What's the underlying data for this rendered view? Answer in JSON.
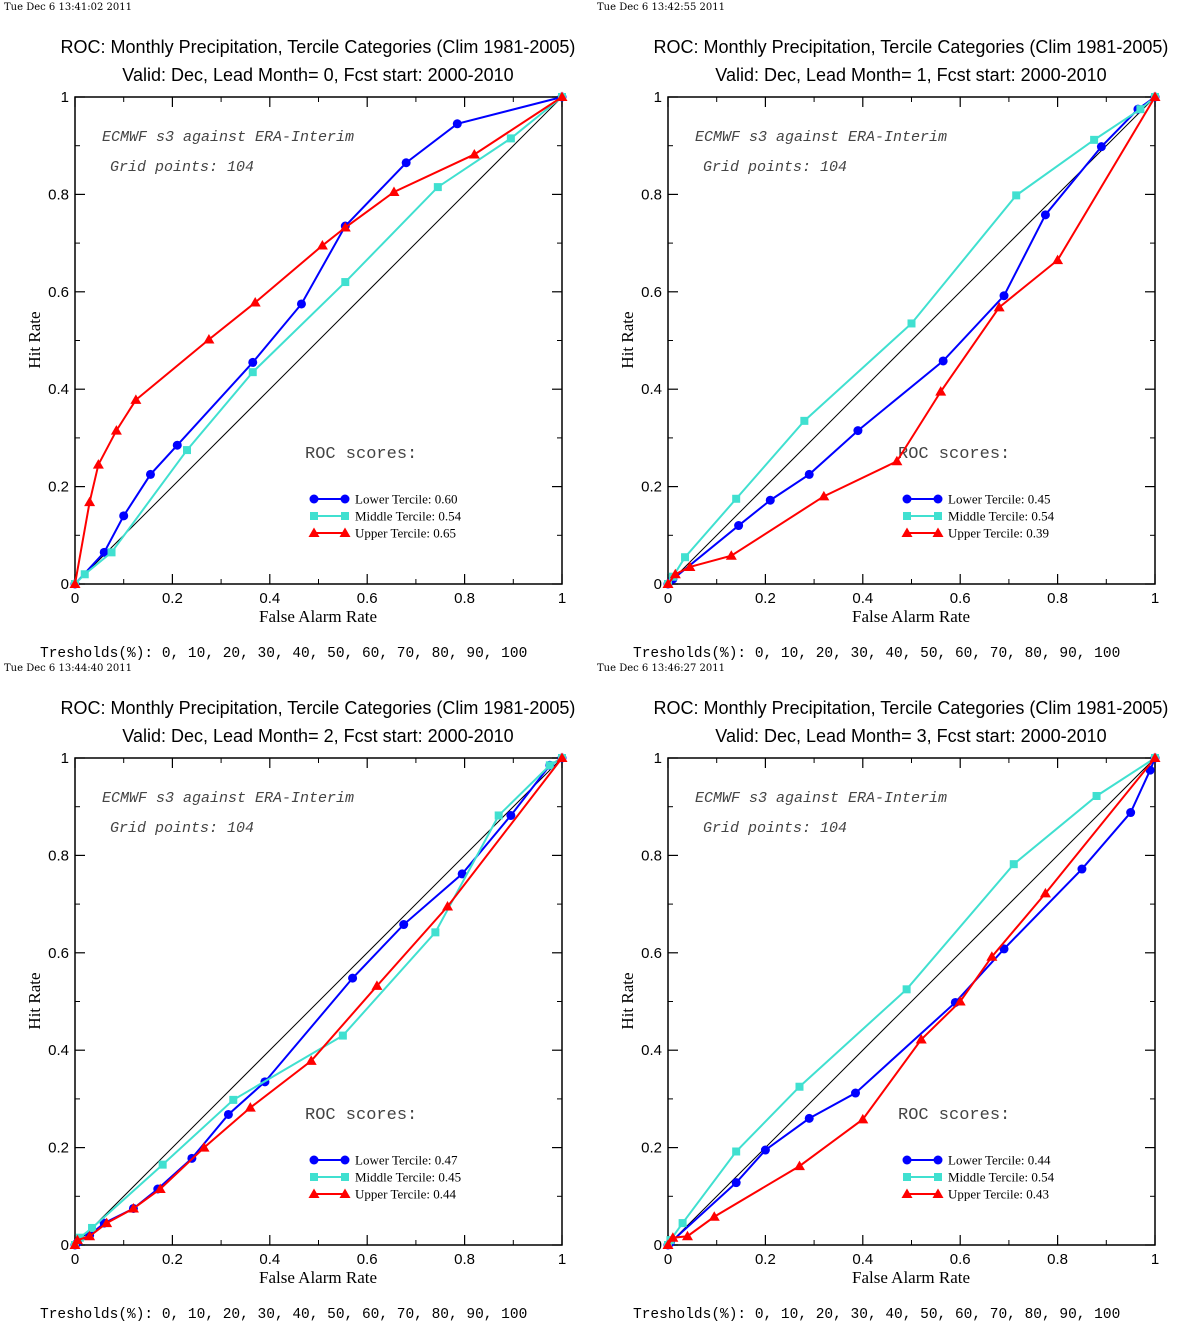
{
  "common": {
    "title": "ROC: Monthly Precipitation, Tercile Categories (Clim 1981-2005)",
    "xlabel": "False Alarm Rate",
    "ylabel": "Hit Rate",
    "note_line1": "ECMWF s3 against ERA-Interim",
    "note_line2": "Grid points:  104",
    "roc_heading": "ROC scores:",
    "thresholds": "Tresholds(%): 0, 10, 20, 30, 40, 50, 60, 70, 80, 90, 100",
    "tick_labels": [
      "0",
      "0.2",
      "0.4",
      "0.6",
      "0.8",
      "1"
    ],
    "colors": {
      "lower": "#0000ff",
      "middle": "#40e0d0",
      "upper": "#ff0000",
      "diagonal": "#000000"
    }
  },
  "panels": [
    {
      "stamp": "Tue Dec  6 13:41:02 2011",
      "subtitle": "Valid: Dec, Lead Month= 0, Fcst start: 2000-2010",
      "legend": [
        "Lower Tercile: 0.60",
        "Middle Tercile: 0.54",
        "Upper Tercile: 0.65"
      ]
    },
    {
      "stamp": "Tue Dec  6 13:42:55 2011",
      "subtitle": "Valid: Dec, Lead Month= 1, Fcst start: 2000-2010",
      "legend": [
        "Lower Tercile: 0.45",
        "Middle Tercile: 0.54",
        "Upper Tercile: 0.39"
      ]
    },
    {
      "stamp": "Tue Dec  6 13:44:40 2011",
      "subtitle": "Valid: Dec, Lead Month= 2, Fcst start: 2000-2010",
      "legend": [
        "Lower Tercile: 0.47",
        "Middle Tercile: 0.45",
        "Upper Tercile: 0.44"
      ]
    },
    {
      "stamp": "Tue Dec  6 13:46:27 2011",
      "subtitle": "Valid: Dec, Lead Month= 3, Fcst start: 2000-2010",
      "legend": [
        "Lower Tercile: 0.44",
        "Middle Tercile: 0.54",
        "Upper Tercile: 0.43"
      ]
    }
  ],
  "chart_data": [
    {
      "type": "line",
      "xlim": [
        0,
        1
      ],
      "ylim": [
        0,
        1
      ],
      "series": [
        {
          "name": "Lower Tercile",
          "x": [
            0,
            0.06,
            0.1,
            0.155,
            0.21,
            0.365,
            0.465,
            0.555,
            0.68,
            0.785,
            1
          ],
          "y": [
            0,
            0.065,
            0.14,
            0.225,
            0.285,
            0.455,
            0.575,
            0.735,
            0.865,
            0.945,
            1
          ]
        },
        {
          "name": "Middle Tercile",
          "x": [
            0,
            0.02,
            0.075,
            0.23,
            0.365,
            0.555,
            0.745,
            0.895,
            1
          ],
          "y": [
            0,
            0.02,
            0.065,
            0.275,
            0.435,
            0.62,
            0.815,
            0.915,
            1
          ]
        },
        {
          "name": "Upper Tercile",
          "x": [
            0,
            0.03,
            0.048,
            0.085,
            0.125,
            0.275,
            0.37,
            0.508,
            0.555,
            0.655,
            0.82,
            1
          ],
          "y": [
            0,
            0.168,
            0.245,
            0.315,
            0.378,
            0.502,
            0.578,
            0.695,
            0.732,
            0.805,
            0.882,
            1
          ]
        }
      ]
    },
    {
      "type": "line",
      "xlim": [
        0,
        1
      ],
      "ylim": [
        0,
        1
      ],
      "series": [
        {
          "name": "Lower Tercile",
          "x": [
            0,
            0.01,
            0.145,
            0.21,
            0.29,
            0.39,
            0.565,
            0.69,
            0.775,
            0.89,
            0.965,
            1
          ],
          "y": [
            0,
            0.01,
            0.12,
            0.172,
            0.225,
            0.315,
            0.458,
            0.592,
            0.758,
            0.898,
            0.975,
            1
          ]
        },
        {
          "name": "Middle Tercile",
          "x": [
            0,
            0.01,
            0.035,
            0.14,
            0.28,
            0.5,
            0.715,
            0.875,
            0.97,
            1
          ],
          "y": [
            0,
            0.015,
            0.055,
            0.175,
            0.335,
            0.535,
            0.798,
            0.912,
            0.975,
            1
          ]
        },
        {
          "name": "Upper Tercile",
          "x": [
            0,
            0.015,
            0.045,
            0.13,
            0.32,
            0.47,
            0.56,
            0.68,
            0.8,
            1
          ],
          "y": [
            0,
            0.02,
            0.035,
            0.058,
            0.18,
            0.252,
            0.395,
            0.568,
            0.665,
            1
          ]
        }
      ]
    },
    {
      "type": "line",
      "xlim": [
        0,
        1
      ],
      "ylim": [
        0,
        1
      ],
      "series": [
        {
          "name": "Lower Tercile",
          "x": [
            0,
            0.005,
            0.03,
            0.06,
            0.12,
            0.17,
            0.24,
            0.315,
            0.39,
            0.57,
            0.675,
            0.795,
            0.895,
            0.975,
            1
          ],
          "y": [
            0,
            0.005,
            0.02,
            0.045,
            0.075,
            0.115,
            0.178,
            0.268,
            0.335,
            0.548,
            0.658,
            0.762,
            0.882,
            0.985,
            1
          ]
        },
        {
          "name": "Middle Tercile",
          "x": [
            0,
            0.01,
            0.035,
            0.18,
            0.325,
            0.55,
            0.74,
            0.87,
            0.975,
            1
          ],
          "y": [
            0,
            0.015,
            0.035,
            0.165,
            0.298,
            0.43,
            0.642,
            0.882,
            0.985,
            1
          ]
        },
        {
          "name": "Upper Tercile",
          "x": [
            0,
            0.005,
            0.03,
            0.065,
            0.12,
            0.175,
            0.265,
            0.36,
            0.485,
            0.62,
            0.765,
            1
          ],
          "y": [
            0,
            0.01,
            0.018,
            0.045,
            0.075,
            0.115,
            0.2,
            0.282,
            0.378,
            0.532,
            0.695,
            1
          ]
        }
      ]
    },
    {
      "type": "line",
      "xlim": [
        0,
        1
      ],
      "ylim": [
        0,
        1
      ],
      "series": [
        {
          "name": "Lower Tercile",
          "x": [
            0,
            0.005,
            0.14,
            0.2,
            0.29,
            0.385,
            0.59,
            0.69,
            0.85,
            0.95,
            0.99,
            1
          ],
          "y": [
            0,
            0.005,
            0.128,
            0.195,
            0.26,
            0.312,
            0.498,
            0.608,
            0.772,
            0.888,
            0.975,
            1
          ]
        },
        {
          "name": "Middle Tercile",
          "x": [
            0,
            0.005,
            0.03,
            0.14,
            0.27,
            0.49,
            0.71,
            0.88,
            1
          ],
          "y": [
            0,
            0.01,
            0.045,
            0.192,
            0.325,
            0.525,
            0.782,
            0.922,
            1
          ]
        },
        {
          "name": "Upper Tercile",
          "x": [
            0,
            0.01,
            0.04,
            0.095,
            0.27,
            0.4,
            0.52,
            0.6,
            0.665,
            0.775,
            1
          ],
          "y": [
            0,
            0.015,
            0.018,
            0.058,
            0.162,
            0.258,
            0.422,
            0.5,
            0.592,
            0.722,
            1
          ]
        }
      ]
    }
  ]
}
